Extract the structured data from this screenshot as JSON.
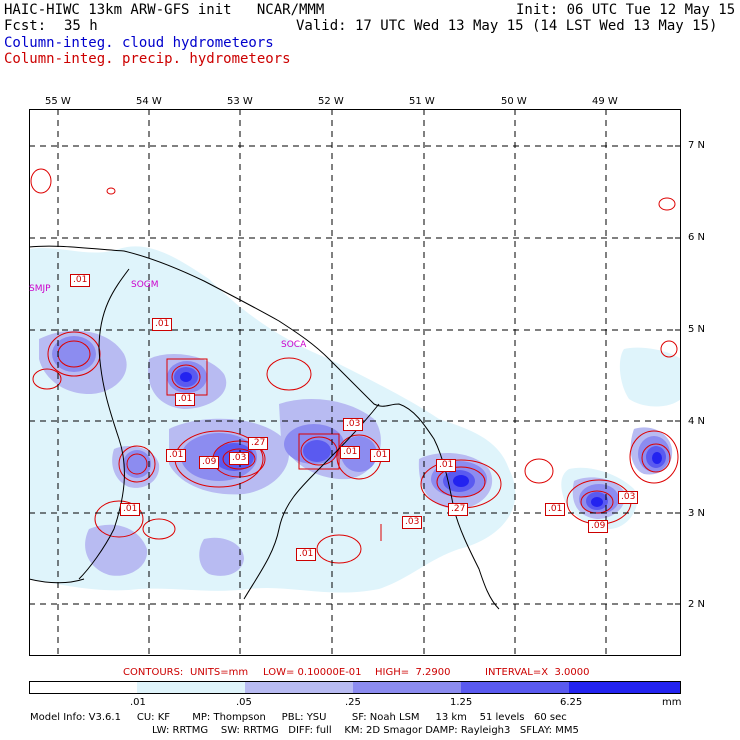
{
  "header": {
    "title_left": "HAIC-HIWC 13km ARW-GFS init   NCAR/MMM",
    "init": "Init: 06 UTC Tue 12 May 15",
    "fcst_label": "Fcst:",
    "fcst_value": "35 h",
    "valid": "Valid: 17 UTC Wed 13 May 15 (14 LST Wed 13 May 15)",
    "field_cloud": "Column-integ. cloud hydrometeors",
    "field_precip": "Column-integ. precip. hydrometeors"
  },
  "colors": {
    "cloud_text": "#0000cc",
    "precip_text": "#cc0000",
    "fill_level_1": "#dff4fb",
    "fill_level_2": "#b8bbf2",
    "fill_level_3": "#8c8cf0",
    "fill_level_4": "#5a5af0",
    "fill_level_5": "#2323f0",
    "contour": "#dd0000",
    "grid": "#000000",
    "coast": "#000000"
  },
  "longitudes": [
    "55 W",
    "54 W",
    "53 W",
    "52 W",
    "51 W",
    "50 W",
    "49 W"
  ],
  "latitudes": [
    "7 N",
    "6 N",
    "5 N",
    "4 N",
    "3 N",
    "2 N"
  ],
  "sites": [
    "SMJP",
    "SOGM",
    "SOCA"
  ],
  "contour_labels": [
    ".01",
    ".01",
    ".01",
    ".01",
    ".27",
    ".09",
    ".03",
    ".01",
    ".01",
    ".01",
    ".03",
    ".27",
    ".01",
    ".01",
    ".03",
    ".09",
    ".03",
    ".01"
  ],
  "contour_info": {
    "contours": "CONTOURS:",
    "units": "UNITS=mm",
    "low": "LOW= 0.10000E-01",
    "high": "HIGH=  7.2900",
    "interval": "INTERVAL=X  3.0000"
  },
  "colorbar": {
    "ticks": [
      ".01",
      ".05",
      ".25",
      "1.25",
      "6.25"
    ],
    "unit": "mm"
  },
  "model_info": {
    "line1": "Model Info: V3.6.1     CU: KF       MP: Thompson     PBL: YSU        SF: Noah LSM     13 km    51 levels   60 sec",
    "line2": "LW: RRTMG    SW: RRTMG   DIFF: full    KM: 2D Smagor DAMP: Rayleigh3   SFLAY: MM5"
  }
}
